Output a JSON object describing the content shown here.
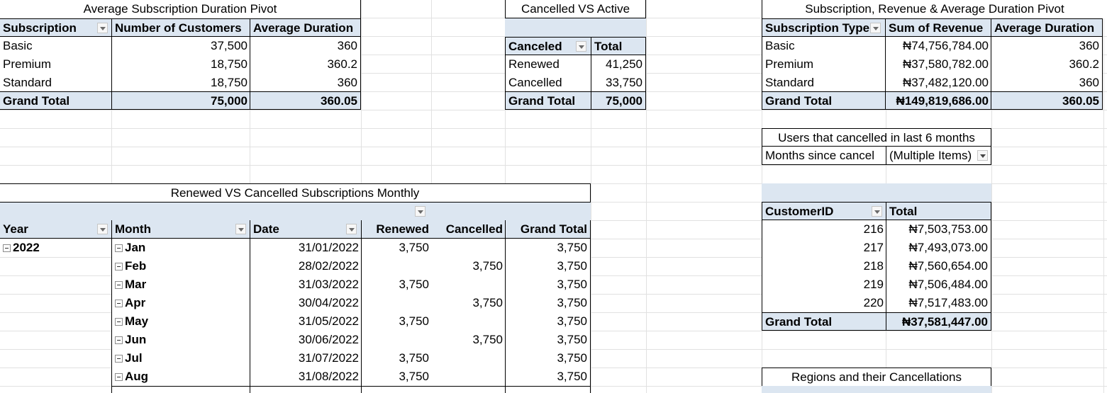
{
  "pivot1": {
    "title": "Average Subscription Duration Pivot",
    "headers": [
      "Subscription",
      "Number of Customers",
      "Average Duration"
    ],
    "rows": [
      [
        "Basic",
        "37,500",
        "360"
      ],
      [
        "Premium",
        "18,750",
        "360.2"
      ],
      [
        "Standard",
        "18,750",
        "360"
      ]
    ],
    "total": [
      "Grand Total",
      "75,000",
      "360.05"
    ]
  },
  "pivot2": {
    "title": "Cancelled VS Active",
    "headers": [
      "Canceled",
      "Total"
    ],
    "rows": [
      [
        "Renewed",
        "41,250"
      ],
      [
        "Cancelled",
        "33,750"
      ]
    ],
    "total": [
      "Grand Total",
      "75,000"
    ]
  },
  "pivot3": {
    "title": "Subscription, Revenue & Average Duration Pivot",
    "headers": [
      "Subscription Type",
      "Sum of Revenue",
      "Average Duration"
    ],
    "rows": [
      [
        "Basic",
        "₦74,756,784.00",
        "360"
      ],
      [
        "Premium",
        "₦37,580,782.00",
        "360.2"
      ],
      [
        "Standard",
        "₦37,482,120.00",
        "360"
      ]
    ],
    "total": [
      "Grand Total",
      "₦149,819,686.00",
      "360.05"
    ]
  },
  "pivot4": {
    "title": "Users that cancelled in last 6 months",
    "filter_label": "Months since cancel",
    "filter_value": "(Multiple Items)",
    "headers": [
      "CustomerID",
      "Total"
    ],
    "rows": [
      [
        "216",
        "₦7,503,753.00"
      ],
      [
        "217",
        "₦7,493,073.00"
      ],
      [
        "218",
        "₦7,560,654.00"
      ],
      [
        "219",
        "₦7,506,484.00"
      ],
      [
        "220",
        "₦7,517,483.00"
      ]
    ],
    "total": [
      "Grand Total",
      "₦37,581,447.00"
    ]
  },
  "pivot5": {
    "title": "Renewed VS Cancelled Subscriptions Monthly",
    "headers": [
      "Year",
      "Month",
      "Date",
      "Renewed",
      "Cancelled",
      "Grand Total"
    ],
    "year": "2022",
    "rows": [
      [
        "Jan",
        "31/01/2022",
        "3,750",
        "",
        "3,750"
      ],
      [
        "Feb",
        "28/02/2022",
        "",
        "3,750",
        "3,750"
      ],
      [
        "Mar",
        "31/03/2022",
        "3,750",
        "",
        "3,750"
      ],
      [
        "Apr",
        "30/04/2022",
        "",
        "3,750",
        "3,750"
      ],
      [
        "May",
        "31/05/2022",
        "3,750",
        "",
        "3,750"
      ],
      [
        "Jun",
        "30/06/2022",
        "",
        "3,750",
        "3,750"
      ],
      [
        "Jul",
        "31/07/2022",
        "3,750",
        "",
        "3,750"
      ],
      [
        "Aug",
        "31/08/2022",
        "3,750",
        "",
        "3,750"
      ]
    ]
  },
  "pivot6": {
    "title": "Regions and their Cancellations"
  },
  "colors": {
    "header_fill": "#dce6f1",
    "gridline": "#e1e1e1",
    "border": "#000000"
  }
}
